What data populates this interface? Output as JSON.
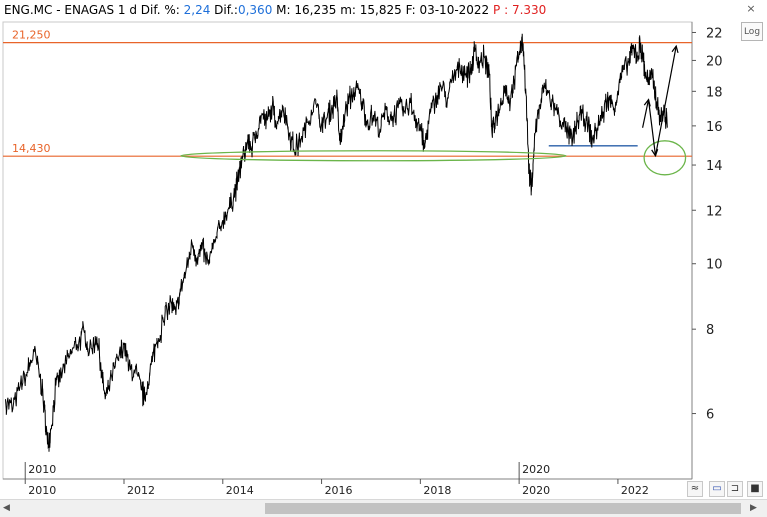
{
  "header": {
    "symbol": "ENG.MC",
    "separator": " - ",
    "name": "ENAGAS",
    "interval": "1 d",
    "pct_label": "Dif. %:",
    "pct_value": "2,24",
    "dif_label": "Dif.:",
    "dif_value": "0,360",
    "max_label": "M:",
    "max_value": "16,235",
    "min_label": "m:",
    "min_value": "15,825",
    "date_label": "F:",
    "date_value": "03-10-2022",
    "p_label": "P :",
    "p_value": "7.330"
  },
  "controls": {
    "log_label": "Log",
    "close_icon": "×",
    "scroll_left": "◀",
    "scroll_right": "▶",
    "tool1": "≈",
    "tool2": "▭",
    "tool3": "⊐",
    "tool4": "■"
  },
  "colors": {
    "price": "#000000",
    "hline": "#e8642a",
    "ellipse": "#6bb54a",
    "support": "#2a5fa8",
    "projection": "#000000"
  },
  "chart_data": {
    "type": "line",
    "scale": "log",
    "ylim": [
      4.8,
      22.8
    ],
    "xlim": [
      2009.55,
      2023.5
    ],
    "yticks": [
      6,
      8,
      10,
      12,
      14,
      16,
      18,
      20,
      22
    ],
    "xticks": [
      {
        "year": 2010,
        "label": "2010"
      },
      {
        "year": 2012,
        "label": "2012"
      },
      {
        "year": 2014,
        "label": "2014"
      },
      {
        "year": 2016,
        "label": "2016"
      },
      {
        "year": 2018,
        "label": "2018"
      },
      {
        "year": 2020,
        "label": "2020"
      },
      {
        "year": 2022,
        "label": "2022"
      }
    ],
    "period_markers": [
      {
        "year": 2010,
        "label": "2010"
      },
      {
        "year": 2020,
        "label": "2020"
      }
    ],
    "hlines": [
      {
        "value": 21.25,
        "label": "21,250"
      },
      {
        "value": 14.43,
        "label": "14,430"
      }
    ],
    "support_segment": {
      "x": [
        2020.6,
        2022.4
      ],
      "y": [
        14.95,
        14.95
      ]
    },
    "ellipses": [
      {
        "center_x": 2017.05,
        "center_y": 14.45,
        "x_halfwidth": 3.9
      },
      {
        "center_x": 2022.95,
        "center_y": 14.35,
        "x_halfwidth": 0.42
      }
    ],
    "projection": {
      "x": [
        2022.5,
        2022.62,
        2022.76,
        2023.18
      ],
      "y": [
        15.9,
        17.5,
        14.45,
        21.0
      ]
    },
    "series": [
      {
        "name": "ENG.MC",
        "points": [
          [
            2009.6,
            6.3
          ],
          [
            2009.75,
            6.1
          ],
          [
            2009.9,
            6.6
          ],
          [
            2010.05,
            6.9
          ],
          [
            2010.18,
            7.4
          ],
          [
            2010.3,
            6.8
          ],
          [
            2010.38,
            6.2
          ],
          [
            2010.45,
            5.4
          ],
          [
            2010.52,
            5.7
          ],
          [
            2010.62,
            6.6
          ],
          [
            2010.75,
            6.9
          ],
          [
            2010.9,
            7.3
          ],
          [
            2011.05,
            7.6
          ],
          [
            2011.2,
            7.9
          ],
          [
            2011.3,
            7.4
          ],
          [
            2011.45,
            7.8
          ],
          [
            2011.55,
            6.9
          ],
          [
            2011.62,
            6.3
          ],
          [
            2011.75,
            6.8
          ],
          [
            2011.88,
            7.2
          ],
          [
            2012.0,
            7.6
          ],
          [
            2012.1,
            7.0
          ],
          [
            2012.22,
            6.9
          ],
          [
            2012.35,
            6.5
          ],
          [
            2012.42,
            6.3
          ],
          [
            2012.55,
            7.1
          ],
          [
            2012.65,
            7.6
          ],
          [
            2012.8,
            8.2
          ],
          [
            2012.95,
            8.8
          ],
          [
            2013.05,
            8.4
          ],
          [
            2013.15,
            9.2
          ],
          [
            2013.25,
            9.7
          ],
          [
            2013.38,
            10.7
          ],
          [
            2013.48,
            10.2
          ],
          [
            2013.58,
            10.5
          ],
          [
            2013.7,
            10.0
          ],
          [
            2013.85,
            10.8
          ],
          [
            2014.0,
            11.6
          ],
          [
            2014.12,
            12.1
          ],
          [
            2014.22,
            12.6
          ],
          [
            2014.3,
            13.2
          ],
          [
            2014.4,
            14.3
          ],
          [
            2014.5,
            15.2
          ],
          [
            2014.58,
            14.8
          ],
          [
            2014.68,
            15.6
          ],
          [
            2014.78,
            16.6
          ],
          [
            2014.9,
            16.3
          ],
          [
            2015.0,
            17.0
          ],
          [
            2015.1,
            16.2
          ],
          [
            2015.22,
            17.1
          ],
          [
            2015.35,
            15.6
          ],
          [
            2015.45,
            14.7
          ],
          [
            2015.58,
            15.3
          ],
          [
            2015.72,
            16.2
          ],
          [
            2015.85,
            17.4
          ],
          [
            2016.0,
            16.1
          ],
          [
            2016.1,
            16.4
          ],
          [
            2016.2,
            16.9
          ],
          [
            2016.3,
            17.6
          ],
          [
            2016.38,
            15.0
          ],
          [
            2016.48,
            16.8
          ],
          [
            2016.6,
            17.7
          ],
          [
            2016.72,
            18.2
          ],
          [
            2016.82,
            17.4
          ],
          [
            2016.92,
            16.2
          ],
          [
            2017.05,
            16.6
          ],
          [
            2017.18,
            15.8
          ],
          [
            2017.3,
            16.9
          ],
          [
            2017.42,
            16.3
          ],
          [
            2017.55,
            17.0
          ],
          [
            2017.68,
            16.8
          ],
          [
            2017.8,
            17.3
          ],
          [
            2017.92,
            16.4
          ],
          [
            2018.02,
            15.7
          ],
          [
            2018.08,
            14.8
          ],
          [
            2018.18,
            16.5
          ],
          [
            2018.3,
            17.4
          ],
          [
            2018.42,
            18.3
          ],
          [
            2018.55,
            17.6
          ],
          [
            2018.68,
            18.9
          ],
          [
            2018.8,
            19.6
          ],
          [
            2018.92,
            19.1
          ],
          [
            2019.02,
            19.3
          ],
          [
            2019.1,
            20.6
          ],
          [
            2019.2,
            19.9
          ],
          [
            2019.3,
            20.2
          ],
          [
            2019.4,
            19.0
          ],
          [
            2019.45,
            15.6
          ],
          [
            2019.52,
            16.4
          ],
          [
            2019.62,
            17.2
          ],
          [
            2019.72,
            18.4
          ],
          [
            2019.8,
            17.4
          ],
          [
            2019.9,
            18.6
          ],
          [
            2020.0,
            20.6
          ],
          [
            2020.08,
            21.2
          ],
          [
            2020.14,
            17.8
          ],
          [
            2020.2,
            13.7
          ],
          [
            2020.25,
            12.9
          ],
          [
            2020.32,
            15.6
          ],
          [
            2020.42,
            17.2
          ],
          [
            2020.52,
            18.4
          ],
          [
            2020.62,
            17.6
          ],
          [
            2020.75,
            16.9
          ],
          [
            2020.88,
            16.2
          ],
          [
            2021.0,
            15.6
          ],
          [
            2021.08,
            15.2
          ],
          [
            2021.18,
            16.2
          ],
          [
            2021.28,
            16.7
          ],
          [
            2021.4,
            16.1
          ],
          [
            2021.48,
            15.2
          ],
          [
            2021.58,
            15.9
          ],
          [
            2021.7,
            16.8
          ],
          [
            2021.82,
            17.6
          ],
          [
            2021.92,
            17.0
          ],
          [
            2022.02,
            18.4
          ],
          [
            2022.12,
            19.4
          ],
          [
            2022.22,
            19.9
          ],
          [
            2022.3,
            20.8
          ],
          [
            2022.4,
            20.3
          ],
          [
            2022.45,
            21.1
          ],
          [
            2022.5,
            20.4
          ],
          [
            2022.55,
            19.2
          ],
          [
            2022.62,
            18.6
          ],
          [
            2022.7,
            18.9
          ],
          [
            2022.78,
            17.4
          ],
          [
            2022.86,
            16.4
          ],
          [
            2022.94,
            16.8
          ],
          [
            2023.0,
            15.9
          ]
        ]
      }
    ]
  }
}
